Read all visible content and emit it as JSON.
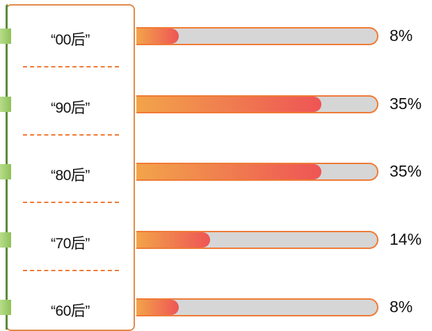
{
  "chart_data": {
    "type": "bar",
    "orientation": "horizontal",
    "categories": [
      "“00后”",
      "“90后”",
      "“80后”",
      "“70后”",
      "“60后”"
    ],
    "values": [
      8,
      35,
      35,
      14,
      8
    ],
    "value_labels": [
      "8%",
      "35%",
      "35%",
      "14%",
      "8%"
    ],
    "xlim": [
      0,
      100
    ]
  },
  "colors": {
    "fill_start": "#f2a44a",
    "fill_end": "#ee5555",
    "track": "#d6d6d6",
    "outline": "#ef7a35",
    "accent_green": "#8fc25a"
  }
}
